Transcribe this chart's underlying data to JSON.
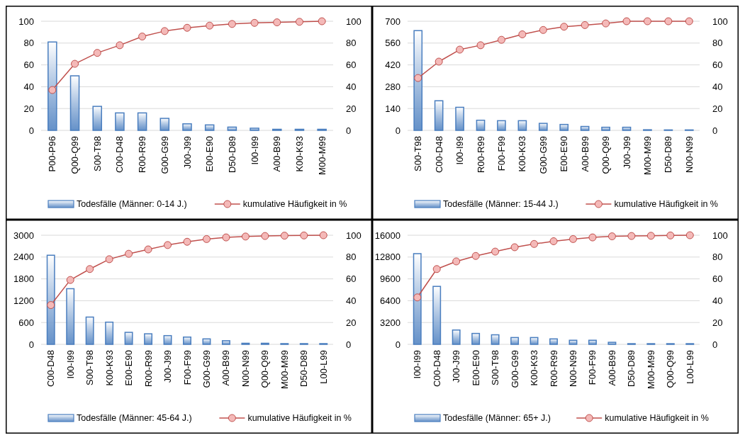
{
  "chart_data": [
    {
      "type": "bar",
      "categories": [
        "P00-P96",
        "Q00-Q99",
        "S00-T98",
        "C00-D48",
        "R00-R99",
        "G00-G99",
        "J00-J99",
        "E00-E90",
        "D50-D89",
        "I00-I99",
        "A00-B99",
        "K00-K93",
        "M00-M99"
      ],
      "series": [
        {
          "name": "Todesfälle (Männer: 0-14 J.)",
          "color": "#4a7ebf",
          "values": [
            81,
            50,
            22,
            16,
            16,
            11,
            6,
            5,
            3,
            2,
            1,
            1,
            1
          ]
        },
        {
          "name": "kumulative Häufigkeit in %",
          "type": "line",
          "axis": "y2",
          "color": "#c0504d",
          "values": [
            37,
            61,
            71,
            78,
            86,
            91,
            94,
            96,
            97.5,
            98.5,
            99,
            99.5,
            100
          ]
        }
      ],
      "ylim": [
        0,
        100
      ],
      "yticks": [
        0,
        20,
        40,
        60,
        80,
        100
      ],
      "y2lim": [
        0,
        100
      ],
      "y2ticks": [
        0,
        20,
        40,
        60,
        80,
        100
      ],
      "grid": "y",
      "legend": "bottom",
      "marker": "circle"
    },
    {
      "type": "bar",
      "categories": [
        "S00-T98",
        "C00-D48",
        "I00-I99",
        "R00-R99",
        "F00-F99",
        "K00-K93",
        "G00-G99",
        "E00-E90",
        "A00-B99",
        "Q00-Q99",
        "J00-J99",
        "M00-M99",
        "D50-D89",
        "N00-N99"
      ],
      "series": [
        {
          "name": "Todesfälle (Männer: 15-44 J.)",
          "color": "#4a7ebf",
          "values": [
            640,
            190,
            148,
            65,
            62,
            62,
            45,
            38,
            25,
            20,
            20,
            4,
            3,
            3
          ]
        },
        {
          "name": "kumulative Häufigkeit in %",
          "type": "line",
          "axis": "y2",
          "color": "#c0504d",
          "values": [
            48,
            63,
            74,
            78,
            83,
            88,
            92,
            95,
            96.5,
            98,
            100,
            100,
            100,
            100
          ]
        }
      ],
      "ylim": [
        0,
        700
      ],
      "yticks": [
        0,
        140,
        280,
        420,
        560,
        700
      ],
      "y2lim": [
        0,
        100
      ],
      "y2ticks": [
        0,
        20,
        40,
        60,
        80,
        100
      ],
      "grid": "y",
      "legend": "bottom",
      "marker": "circle"
    },
    {
      "type": "bar",
      "categories": [
        "C00-D48",
        "I00-I99",
        "S00-T98",
        "K00-K93",
        "E00-E90",
        "R00-R99",
        "J00-J99",
        "F00-F99",
        "G00-G99",
        "A00-B99",
        "N00-N99",
        "Q00-Q99",
        "M00-M99",
        "D50-D89",
        "L00-L99"
      ],
      "series": [
        {
          "name": "Todesfälle (Männer: 45-64 J.)",
          "color": "#4a7ebf",
          "values": [
            2450,
            1530,
            750,
            610,
            330,
            290,
            240,
            200,
            150,
            100,
            30,
            30,
            20,
            20,
            20
          ]
        },
        {
          "name": "kumulative Häufigkeit in %",
          "type": "line",
          "axis": "y2",
          "color": "#c0504d",
          "values": [
            36,
            59,
            69,
            78,
            83,
            87,
            91,
            94,
            96.5,
            98,
            98.8,
            99.3,
            99.6,
            99.8,
            100
          ]
        }
      ],
      "ylim": [
        0,
        3000
      ],
      "yticks": [
        0,
        600,
        1200,
        1800,
        2400,
        3000
      ],
      "y2lim": [
        0,
        100
      ],
      "y2ticks": [
        0,
        20,
        40,
        60,
        80,
        100
      ],
      "grid": "y",
      "legend": "bottom",
      "marker": "circle"
    },
    {
      "type": "bar",
      "categories": [
        "I00-I99",
        "C00-D48",
        "J00-J99",
        "E00-E90",
        "S00-T98",
        "G00-G99",
        "K00-K93",
        "R00-R99",
        "N00-N99",
        "F00-F99",
        "A00-B99",
        "D50-D89",
        "M00-M99",
        "Q00-Q99",
        "L00-L99"
      ],
      "series": [
        {
          "name": "Todesfälle (Männer: 65+ J.)",
          "color": "#4a7ebf",
          "values": [
            13300,
            8500,
            2100,
            1600,
            1400,
            1000,
            1000,
            800,
            600,
            600,
            300,
            100,
            100,
            100,
            100
          ]
        },
        {
          "name": "kumulative Häufigkeit in %",
          "type": "line",
          "axis": "y2",
          "color": "#c0504d",
          "values": [
            43,
            69,
            76,
            81,
            85,
            89,
            92,
            94.5,
            96.5,
            98,
            99,
            99.3,
            99.5,
            99.8,
            100
          ]
        }
      ],
      "ylim": [
        0,
        16000
      ],
      "yticks": [
        0,
        3200,
        6400,
        9600,
        12800,
        16000
      ],
      "y2lim": [
        0,
        100
      ],
      "y2ticks": [
        0,
        20,
        40,
        60,
        80,
        100
      ],
      "grid": "y",
      "legend": "bottom",
      "marker": "circle"
    }
  ]
}
